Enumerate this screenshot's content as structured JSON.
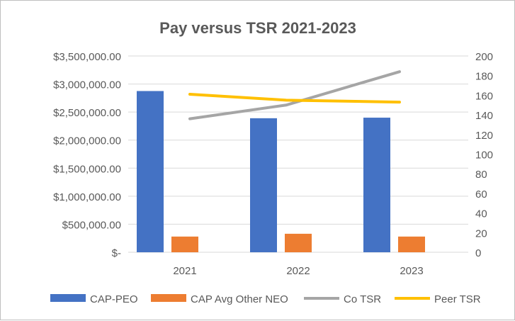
{
  "chart_data": {
    "type": "bar",
    "title": "Pay versus TSR 2021-2023",
    "categories": [
      "2021",
      "2022",
      "2023"
    ],
    "series": [
      {
        "name": "CAP-PEO",
        "kind": "bar",
        "axis": "left",
        "color": "#4472C4",
        "values": [
          2875000,
          2390000,
          2400000
        ]
      },
      {
        "name": "CAP Avg Other NEO",
        "kind": "bar",
        "axis": "left",
        "color": "#ED7D31",
        "values": [
          280000,
          330000,
          280000
        ]
      },
      {
        "name": "Co TSR",
        "kind": "line",
        "axis": "right",
        "color": "#A5A5A5",
        "values": [
          136,
          150,
          184
        ]
      },
      {
        "name": "Peer TSR",
        "kind": "line",
        "axis": "right",
        "color": "#FFC000",
        "values": [
          161,
          155,
          153
        ]
      }
    ],
    "left_axis": {
      "ylim": [
        0,
        3500000
      ],
      "ticks": [
        "$-",
        "$500,000.00",
        "$1,000,000.00",
        "$1,500,000.00",
        "$2,000,000.00",
        "$2,500,000.00",
        "$3,000,000.00",
        "$3,500,000.00"
      ]
    },
    "right_axis": {
      "ylim": [
        0,
        200
      ],
      "ticks": [
        "0",
        "20",
        "40",
        "60",
        "80",
        "100",
        "120",
        "140",
        "160",
        "180",
        "200"
      ]
    },
    "grid": true,
    "legend": "bottom"
  }
}
